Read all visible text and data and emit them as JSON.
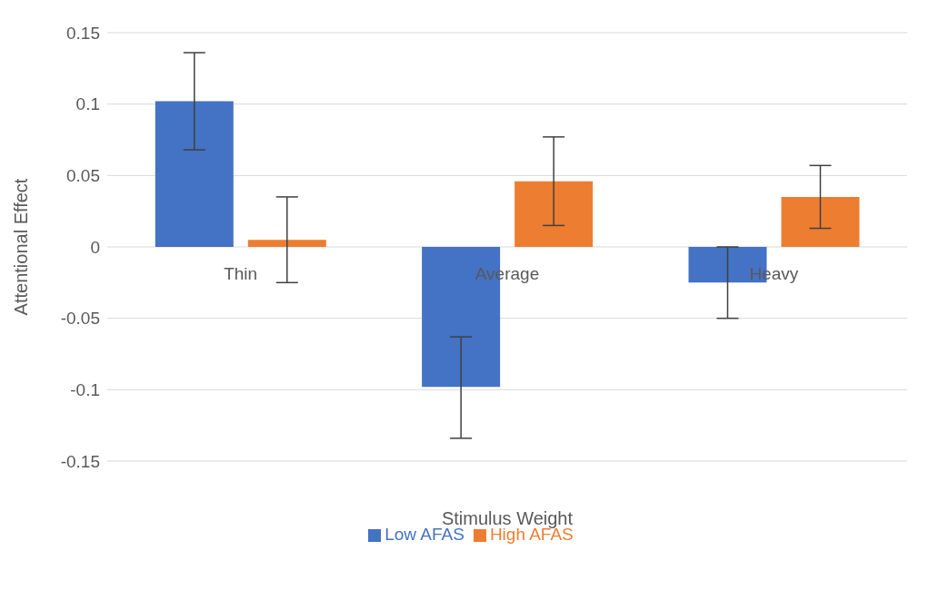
{
  "chart_data": {
    "type": "bar",
    "xlabel": "Stimulus Weight",
    "ylabel": "Attentional Effect",
    "categories": [
      "Thin",
      "Average",
      "Heavy"
    ],
    "series": [
      {
        "name": "Low AFAS",
        "color": "#4472c4",
        "values": [
          0.102,
          -0.098,
          -0.025
        ],
        "errors": [
          [
            0.068,
            0.136
          ],
          [
            -0.134,
            -0.063
          ],
          [
            -0.05,
            0
          ]
        ]
      },
      {
        "name": "High AFAS",
        "color": "#ed7d31",
        "values": [
          0.005,
          0.046,
          0.035
        ],
        "errors": [
          [
            -0.025,
            0.035
          ],
          [
            0.015,
            0.077
          ],
          [
            0.013,
            0.057
          ]
        ]
      }
    ],
    "ylim": [
      -0.15,
      0.15
    ],
    "yticks": [
      -0.15,
      -0.1,
      -0.05,
      0,
      0.05,
      0.1,
      0.15
    ],
    "grid": "y",
    "legend": "bottom"
  }
}
